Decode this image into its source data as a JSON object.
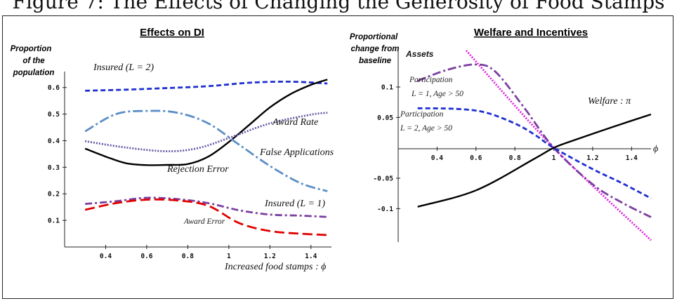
{
  "figure_title": "Figure 7: The Effects of Changing the Generosity of Food Stamps",
  "chart_data": [
    {
      "type": "line",
      "title": "Effects on DI",
      "ylabel": "Proportion of the population",
      "xlabel": "Increased food stamps : ϕ",
      "xlim": [
        0.2,
        1.5
      ],
      "ylim": [
        0.0,
        0.66
      ],
      "xticks": [
        0.4,
        0.6,
        0.8,
        1.0,
        1.2,
        1.4
      ],
      "xtick_labels": [
        "0.4",
        "0.6",
        "0.8",
        "1",
        "1.2",
        "1.4"
      ],
      "yticks": [
        0.1,
        0.2,
        0.3,
        0.4,
        0.5,
        0.6
      ],
      "ytick_labels": [
        "0.1",
        "0.2",
        "0.3",
        "0.4",
        "0.5",
        "0.6"
      ],
      "series": [
        {
          "name": "Insured (L = 2)",
          "color": "#1f2fd0",
          "dash": "7,4",
          "x": [
            0.3,
            0.5,
            0.7,
            0.9,
            1.1,
            1.3,
            1.48
          ],
          "y": [
            0.588,
            0.592,
            0.598,
            0.605,
            0.618,
            0.622,
            0.615
          ]
        },
        {
          "name": "Rejection Error",
          "color": "#000000",
          "dash": "",
          "x": [
            0.3,
            0.4,
            0.5,
            0.6,
            0.7,
            0.8,
            0.9,
            1.0,
            1.1,
            1.2,
            1.3,
            1.4,
            1.48
          ],
          "y": [
            0.37,
            0.34,
            0.315,
            0.308,
            0.309,
            0.312,
            0.34,
            0.395,
            0.46,
            0.525,
            0.575,
            0.61,
            0.63
          ]
        },
        {
          "name": "Award Rate",
          "color": "#6b5aa5",
          "dash": "2,2",
          "x": [
            0.3,
            0.5,
            0.7,
            0.85,
            1.0,
            1.2,
            1.4,
            1.48
          ],
          "y": [
            0.398,
            0.374,
            0.36,
            0.372,
            0.41,
            0.465,
            0.498,
            0.505
          ]
        },
        {
          "name": "False Applications",
          "color": "#5b8ec7",
          "dash": "14,4,3,4",
          "x": [
            0.3,
            0.45,
            0.6,
            0.75,
            0.9,
            1.05,
            1.2,
            1.35,
            1.48
          ],
          "y": [
            0.435,
            0.5,
            0.512,
            0.505,
            0.465,
            0.385,
            0.305,
            0.24,
            0.21
          ]
        },
        {
          "name": "Insured (L = 1)",
          "color": "#7b3fa0",
          "dash": "10,4,3,4",
          "x": [
            0.3,
            0.45,
            0.6,
            0.75,
            0.9,
            1.05,
            1.2,
            1.35,
            1.48
          ],
          "y": [
            0.162,
            0.172,
            0.185,
            0.18,
            0.165,
            0.138,
            0.122,
            0.118,
            0.113
          ]
        },
        {
          "name": "Award Error",
          "color": "#e00000",
          "dash": "14,6",
          "x": [
            0.3,
            0.45,
            0.6,
            0.75,
            0.9,
            1.05,
            1.2,
            1.35,
            1.48
          ],
          "y": [
            0.14,
            0.165,
            0.178,
            0.175,
            0.155,
            0.09,
            0.06,
            0.05,
            0.045
          ]
        }
      ],
      "annotations": [
        "Insured (L = 2)",
        "Award Rate",
        "False Applications",
        "Rejection Error",
        "Insured (L = 1)",
        "Award Error"
      ]
    },
    {
      "type": "line",
      "title": "Welfare and Incentives",
      "ylabel": "Proportional change from baseline",
      "xlabel": "ϕ",
      "xlim": [
        0.2,
        1.5
      ],
      "ylim": [
        -0.155,
        0.16
      ],
      "xticks": [
        0.4,
        0.6,
        0.8,
        1.0,
        1.2,
        1.4
      ],
      "xtick_labels": [
        "0.4",
        "0.6",
        "0.8",
        "1",
        "1.2",
        "1.4"
      ],
      "yticks": [
        -0.1,
        -0.05,
        0.05,
        0.1
      ],
      "ytick_labels": [
        "-0.1",
        "-0.05",
        "0.05",
        "0.1"
      ],
      "series": [
        {
          "name": "Assets",
          "color": "#e020e0",
          "dash": "2,2",
          "x": [
            0.55,
            1.0,
            1.5
          ],
          "y": [
            0.16,
            0.0,
            -0.152
          ]
        },
        {
          "name": "Participation L = 1, Age > 50",
          "color": "#7b3fa0",
          "dash": "12,4,3,4",
          "x": [
            0.3,
            0.45,
            0.6,
            0.7,
            0.85,
            1.0,
            1.2,
            1.35,
            1.5
          ],
          "y": [
            0.11,
            0.128,
            0.137,
            0.125,
            0.065,
            0.0,
            -0.06,
            -0.09,
            -0.114
          ]
        },
        {
          "name": "Participation L = 2, Age > 50",
          "color": "#1f2fd0",
          "dash": "7,4",
          "x": [
            0.3,
            0.5,
            0.65,
            0.8,
            0.9,
            1.0,
            1.2,
            1.35,
            1.5
          ],
          "y": [
            0.065,
            0.064,
            0.058,
            0.04,
            0.022,
            0.0,
            -0.035,
            -0.058,
            -0.083
          ]
        },
        {
          "name": "Welfare : π",
          "color": "#000000",
          "dash": "",
          "x": [
            0.3,
            0.6,
            0.9,
            1.0,
            1.1,
            1.3,
            1.5
          ],
          "y": [
            -0.097,
            -0.07,
            -0.018,
            0.0,
            0.012,
            0.034,
            0.055
          ]
        }
      ],
      "annotations": [
        "Assets",
        "Participation",
        "L = 1, Age > 50",
        "Participation",
        "L = 2, Age > 50",
        "Welfare : π"
      ]
    }
  ],
  "left": {
    "title": "Effects on DI",
    "ylabel_lines": [
      "Proportion",
      "of the",
      "population"
    ],
    "xlabel": "Increased  food stamps : ϕ",
    "labels": {
      "insured2": "Insured (L = 2)",
      "award_rate": "Award Rate",
      "false_apps": "False Applications",
      "rejection": "Rejection Error",
      "insured1": "Insured (L = 1)",
      "award_error": "Award Error"
    }
  },
  "right": {
    "title": "Welfare and Incentives",
    "ylabel_lines": [
      "Proportional",
      "change from",
      "baseline"
    ],
    "xlabel": "ϕ",
    "labels": {
      "assets": "Assets",
      "part1_a": "Participation",
      "part1_b": "L = 1, Age > 50",
      "part2_a": "Participation",
      "part2_b": "L = 2, Age > 50",
      "welfare": "Welfare : π"
    }
  }
}
